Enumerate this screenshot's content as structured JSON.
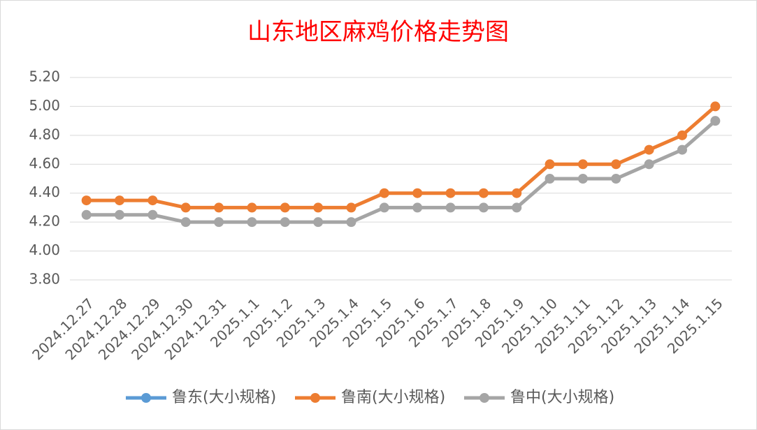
{
  "chart_data": {
    "type": "line",
    "title": "山东地区麻鸡价格走势图",
    "categories": [
      "2024.12.27",
      "2024.12.28",
      "2024.12.29",
      "2024.12.30",
      "2024.12.31",
      "2025.1.1",
      "2025.1.2",
      "2025.1.3",
      "2025.1.4",
      "2025.1.5",
      "2025.1.6",
      "2025.1.7",
      "2025.1.8",
      "2025.1.9",
      "2025.1.10",
      "2025.1.11",
      "2025.1.12",
      "2025.1.13",
      "2025.1.14",
      "2025.1.15"
    ],
    "series": [
      {
        "name": "鲁东(大小规格)",
        "color": "#5b9bd5",
        "values": [
          null,
          null,
          null,
          null,
          null,
          null,
          null,
          null,
          null,
          null,
          null,
          null,
          null,
          null,
          null,
          null,
          null,
          null,
          null,
          null
        ]
      },
      {
        "name": "鲁南(大小规格)",
        "color": "#ed7d31",
        "values": [
          4.35,
          4.35,
          4.35,
          4.3,
          4.3,
          4.3,
          4.3,
          4.3,
          4.3,
          4.4,
          4.4,
          4.4,
          4.4,
          4.4,
          4.6,
          4.6,
          4.6,
          4.7,
          4.8,
          5.0
        ]
      },
      {
        "name": "鲁中(大小规格)",
        "color": "#a5a5a5",
        "values": [
          4.25,
          4.25,
          4.25,
          4.2,
          4.2,
          4.2,
          4.2,
          4.2,
          4.2,
          4.3,
          4.3,
          4.3,
          4.3,
          4.3,
          4.5,
          4.5,
          4.5,
          4.6,
          4.7,
          4.9
        ]
      }
    ],
    "ylim": [
      3.8,
      5.2
    ],
    "yticks": [
      {
        "value": 3.8,
        "label": "3.80"
      },
      {
        "value": 4.0,
        "label": "4.00"
      },
      {
        "value": 4.2,
        "label": "4.20"
      },
      {
        "value": 4.4,
        "label": "4.40"
      },
      {
        "value": 4.6,
        "label": "4.60"
      },
      {
        "value": 4.8,
        "label": "4.80"
      },
      {
        "value": 5.0,
        "label": "5.00"
      },
      {
        "value": 5.2,
        "label": "5.20"
      }
    ],
    "grid": true,
    "legend": "bottom"
  }
}
